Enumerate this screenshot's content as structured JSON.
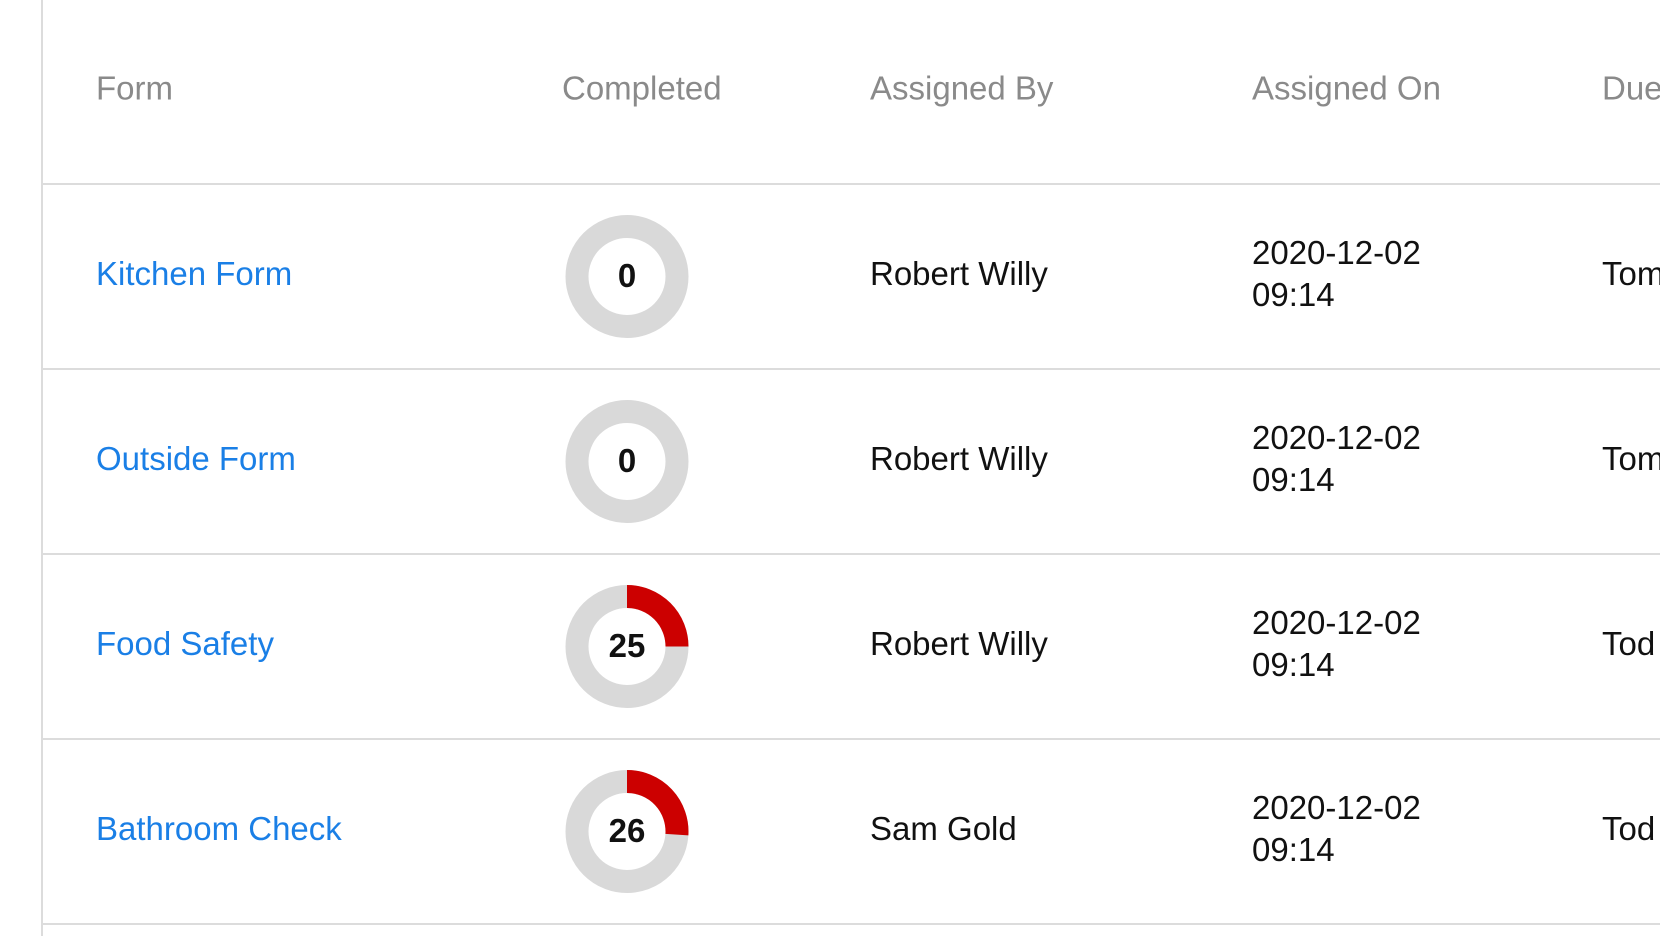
{
  "table": {
    "columns": [
      "Form",
      "Completed",
      "Assigned By",
      "Assigned On",
      "Due"
    ],
    "rows": [
      [
        "Kitchen Form",
        0,
        "Robert Willy",
        [
          "2020-12-02",
          "09:14"
        ],
        "Tom"
      ],
      [
        "Outside Form",
        0,
        "Robert Willy",
        [
          "2020-12-02",
          "09:14"
        ],
        "Tom"
      ],
      [
        "Food Safety",
        25,
        "Robert Willy",
        [
          "2020-12-02",
          "09:14"
        ],
        "Tod"
      ],
      [
        "Bathroom Check",
        26,
        "Sam Gold",
        [
          "2020-12-02",
          "09:14"
        ],
        "Tod"
      ]
    ]
  }
}
